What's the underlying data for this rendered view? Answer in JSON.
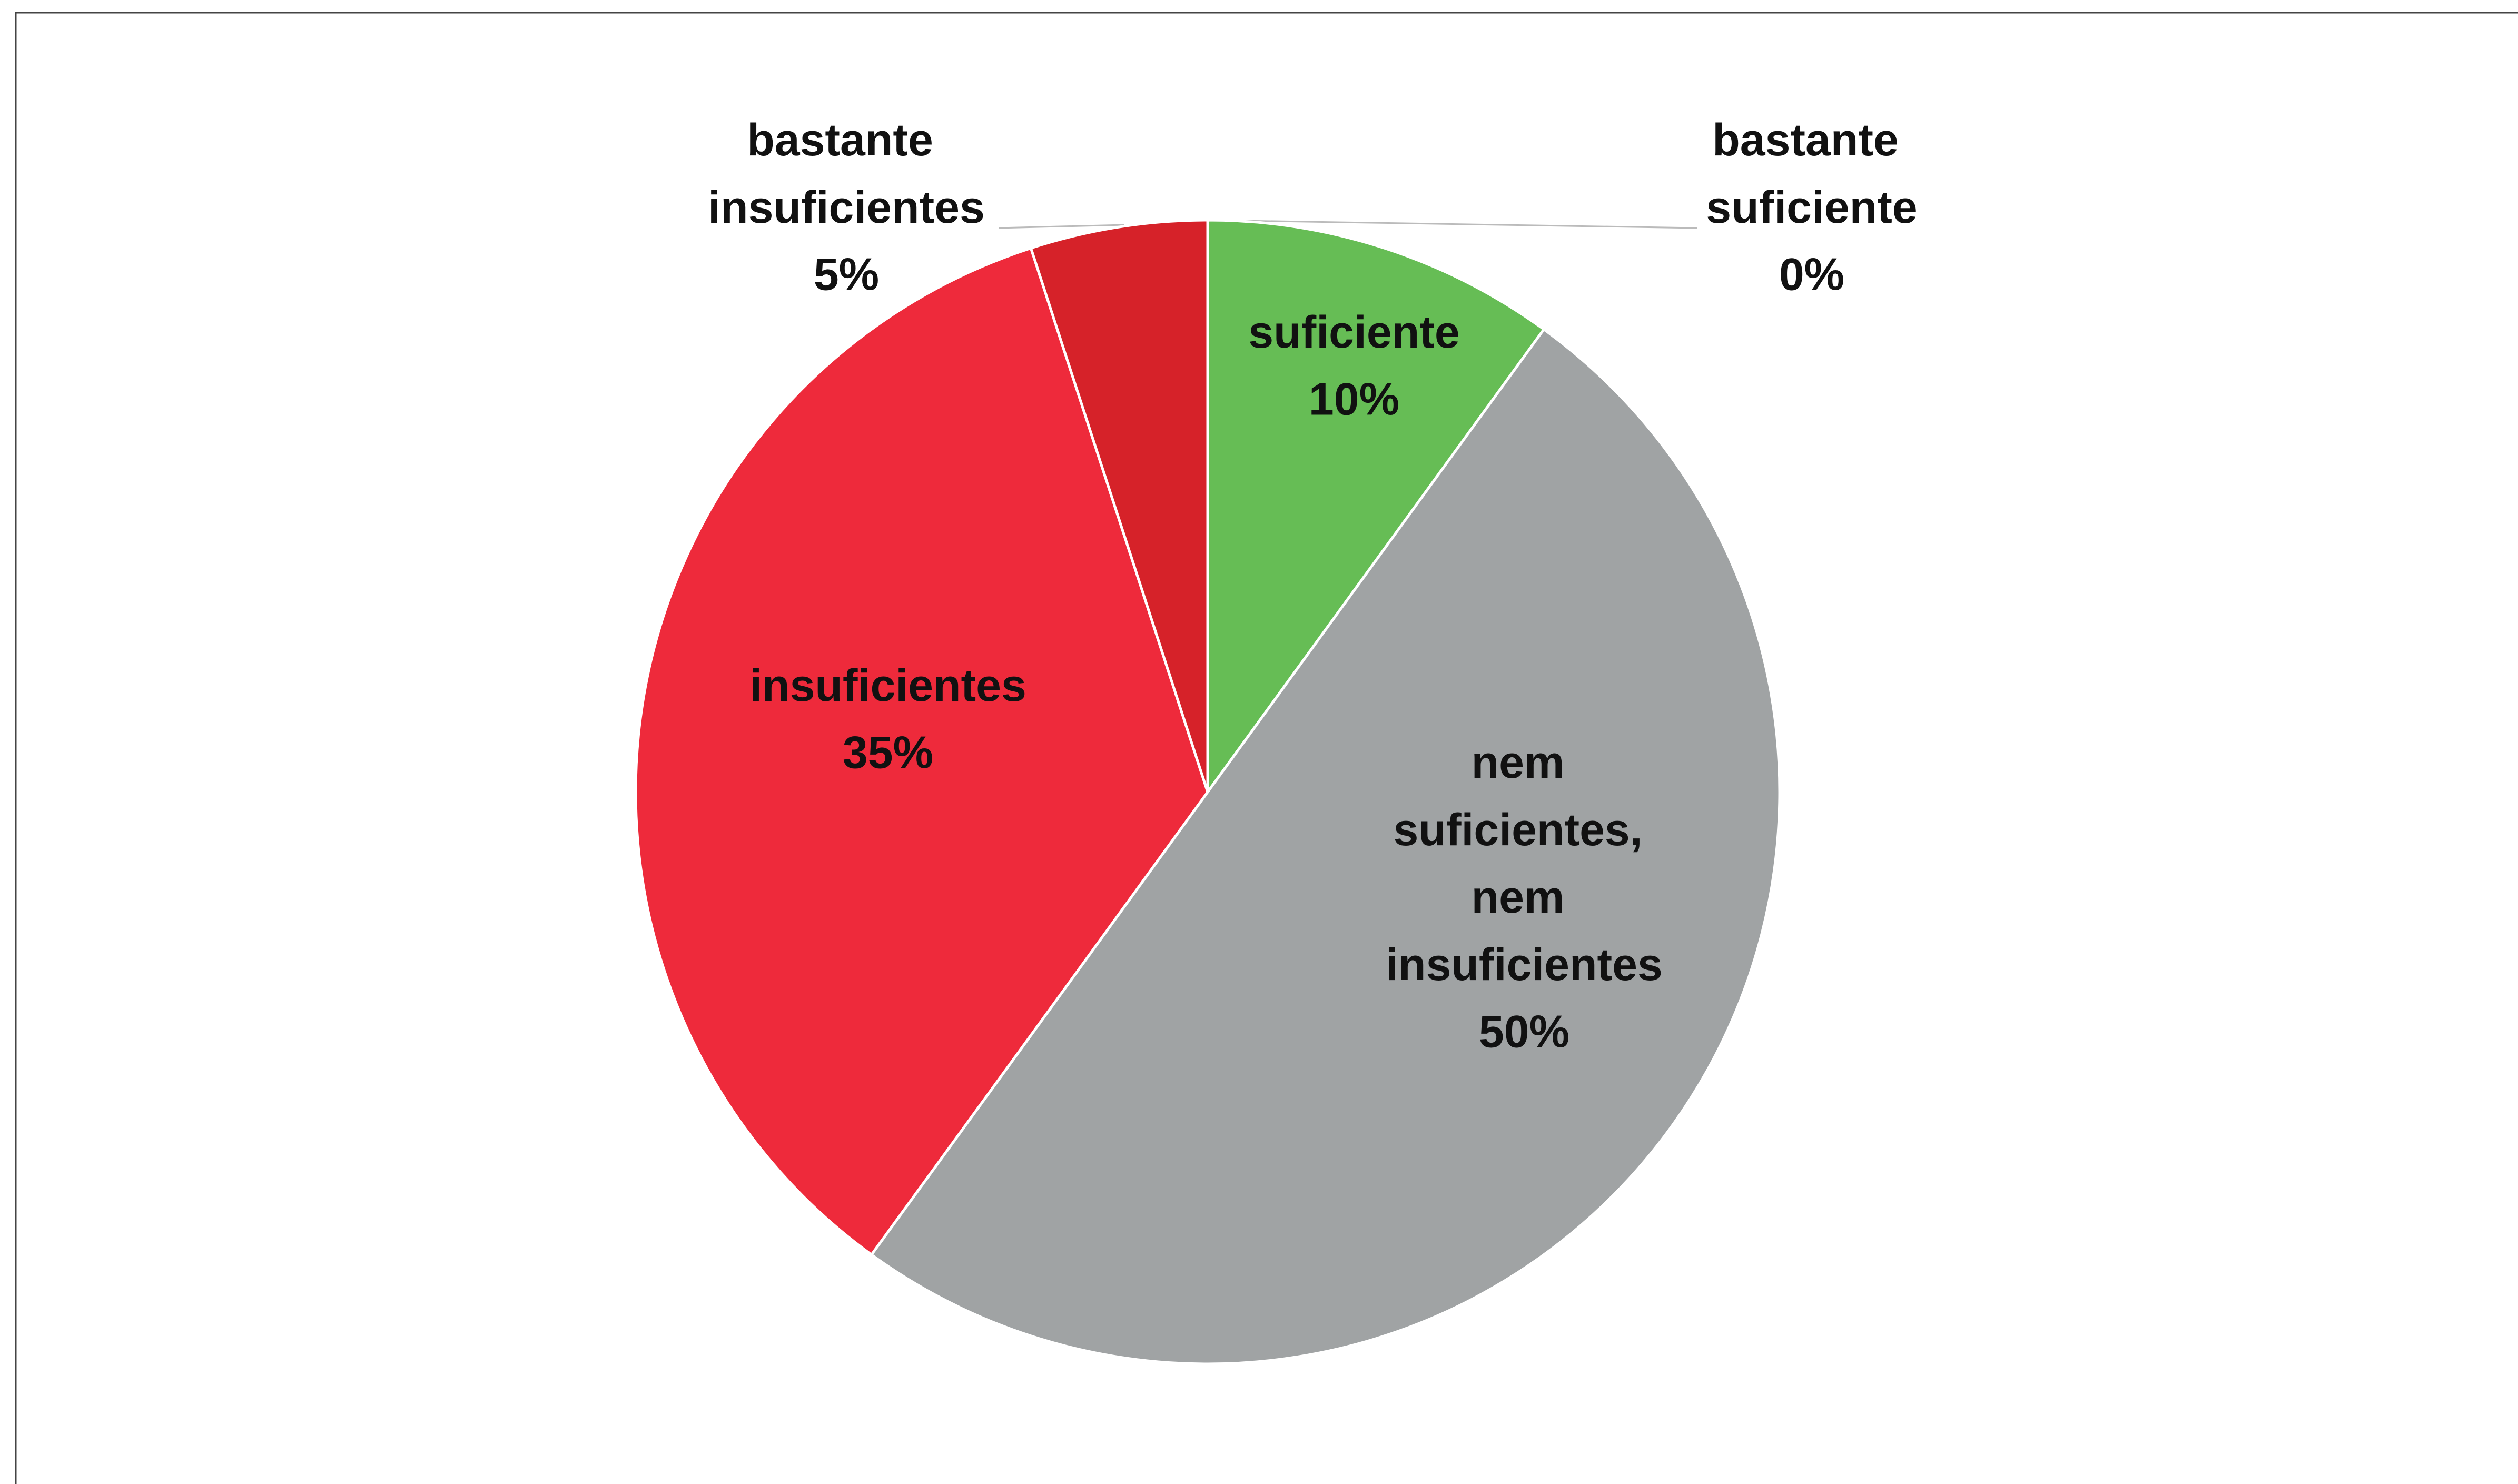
{
  "chart_data": {
    "type": "pie",
    "categories": [
      "bastante suficiente",
      "suficiente",
      "nem suficientes, nem insuficientes",
      "insuficientes",
      "bastante insuficientes"
    ],
    "values": [
      0,
      10,
      50,
      35,
      5
    ],
    "value_labels": [
      "0%",
      "10%",
      "50%",
      "35%",
      "5%"
    ],
    "colors": [
      "#4e9a3e",
      "#66bd55",
      "#a0a3a4",
      "#ee2a3b",
      "#d62229"
    ]
  }
}
